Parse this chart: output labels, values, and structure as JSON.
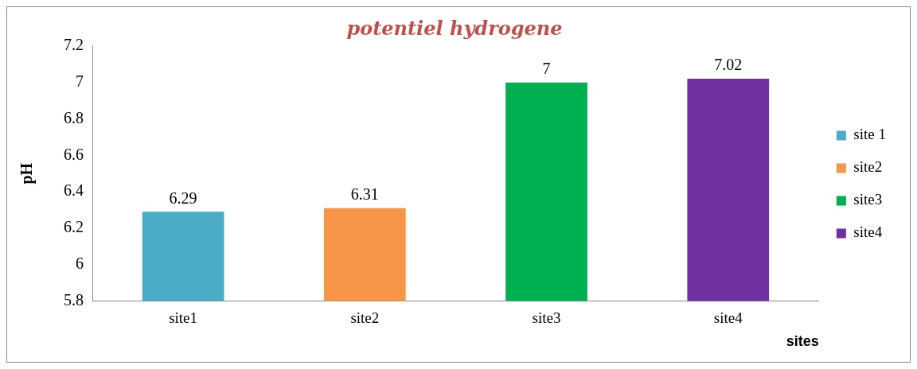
{
  "chart_data": {
    "type": "bar",
    "title": "potentiel hydrogene",
    "ylabel": "pH",
    "xlabel": "sites",
    "categories": [
      "site1",
      "site2",
      "site3",
      "site4"
    ],
    "series": [
      {
        "name": "site 1",
        "color": "#4bacc6",
        "values": [
          6.29,
          null,
          null,
          null
        ]
      },
      {
        "name": "site2",
        "color": "#f79646",
        "values": [
          null,
          6.31,
          null,
          null
        ]
      },
      {
        "name": "site3",
        "color": "#00b050",
        "values": [
          null,
          null,
          7,
          null
        ]
      },
      {
        "name": "site4",
        "color": "#7030a0",
        "values": [
          null,
          null,
          null,
          7.02
        ]
      }
    ],
    "ylim": [
      5.8,
      7.2
    ],
    "yticks": [
      5.8,
      6,
      6.2,
      6.4,
      6.6,
      6.8,
      7,
      7.2
    ],
    "grid": false,
    "legend": "right",
    "data_labels": true
  }
}
